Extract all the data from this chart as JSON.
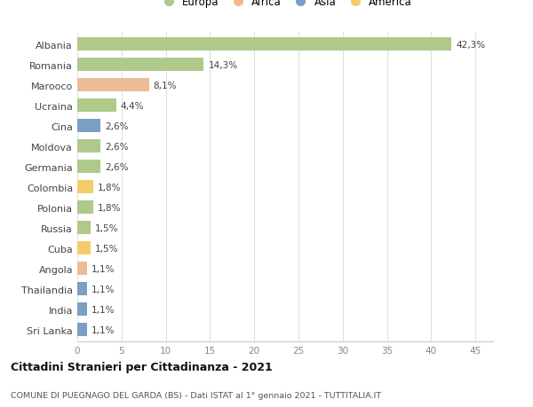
{
  "countries": [
    "Albania",
    "Romania",
    "Marooco",
    "Ucraina",
    "Cina",
    "Moldova",
    "Germania",
    "Colombia",
    "Polonia",
    "Russia",
    "Cuba",
    "Angola",
    "Thailandia",
    "India",
    "Sri Lanka"
  ],
  "values": [
    42.3,
    14.3,
    8.1,
    4.4,
    2.6,
    2.6,
    2.6,
    1.8,
    1.8,
    1.5,
    1.5,
    1.1,
    1.1,
    1.1,
    1.1
  ],
  "value_labels": [
    "42,3%",
    "14,3%",
    "8,1%",
    "4,4%",
    "2,6%",
    "2,6%",
    "2,6%",
    "1,8%",
    "1,8%",
    "1,5%",
    "1,5%",
    "1,1%",
    "1,1%",
    "1,1%",
    "1,1%"
  ],
  "continents": [
    "Europa",
    "Europa",
    "Africa",
    "Europa",
    "Asia",
    "Europa",
    "Europa",
    "America",
    "Europa",
    "Europa",
    "America",
    "Africa",
    "Asia",
    "Asia",
    "Asia"
  ],
  "continent_colors": {
    "Europa": "#aec98a",
    "Africa": "#edba96",
    "Asia": "#7b9fc4",
    "America": "#f5cc6a"
  },
  "legend_order": [
    "Europa",
    "Africa",
    "Asia",
    "America"
  ],
  "legend_colors": [
    "#aec98a",
    "#edba96",
    "#7b9fc4",
    "#f5cc6a"
  ],
  "xlim": [
    0,
    47
  ],
  "xticks": [
    0,
    5,
    10,
    15,
    20,
    25,
    30,
    35,
    40,
    45
  ],
  "title_bold": "Cittadini Stranieri per Cittadinanza - 2021",
  "subtitle": "COMUNE DI PUEGNAGO DEL GARDA (BS) - Dati ISTAT al 1° gennaio 2021 - TUTTITALIA.IT",
  "background_color": "#ffffff",
  "grid_color": "#e0e0e0",
  "bar_height": 0.65
}
